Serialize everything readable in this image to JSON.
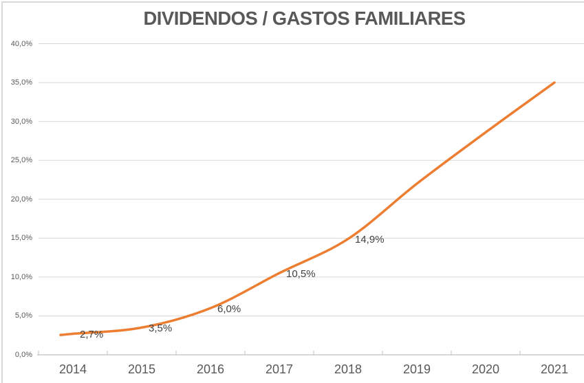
{
  "chart_data": {
    "type": "line",
    "title": "DIVIDENDOS / GASTOS FAMILIARES",
    "categories": [
      "2014",
      "2015",
      "2016",
      "2017",
      "2018",
      "2019",
      "2020",
      "2021"
    ],
    "values": [
      2.7,
      3.5,
      6.0,
      10.5,
      14.9,
      22.0,
      28.6,
      35.0
    ],
    "data_labels": [
      "2,7%",
      "3,5%",
      "6,0%",
      "10,5%",
      "14,9%",
      "",
      "",
      ""
    ],
    "ylim": [
      0,
      40
    ],
    "ytick_step": 5,
    "ytick_labels": [
      "0,0%",
      "5,0%",
      "10,0%",
      "15,0%",
      "20,0%",
      "25,0%",
      "30,0%",
      "35,0%",
      "40,0%"
    ],
    "xlabel": "",
    "ylabel": "",
    "grid": true,
    "legend": "none",
    "line_color": "#ED7D31",
    "colors": {
      "title": "#595959",
      "axis_text": "#595959",
      "data_label": "#404040",
      "gridline": "#D9D9D9",
      "axis_line": "#BFBFBF",
      "border": "#D9D9D9",
      "background": "#FFFFFF"
    }
  }
}
